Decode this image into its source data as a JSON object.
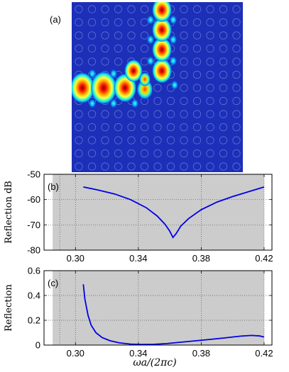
{
  "panel_labels": {
    "a": "(a)",
    "b": "(b)",
    "c": "(c)"
  },
  "field_map": {
    "colormap": "jet",
    "description": "bent waveguide field intensity in a square-lattice photonic crystal"
  },
  "x_axis": {
    "xlabel": "ωa/(2πc)",
    "ticks": [
      "0.30",
      "0.34",
      "0.38",
      "0.42"
    ]
  },
  "chart_data": [
    {
      "type": "line",
      "panel": "(b)",
      "ylabel": "Reflection dB",
      "xlim": [
        0.28,
        0.425
      ],
      "ylim": [
        -80,
        -50
      ],
      "yticks": [
        "-50",
        "-60",
        "-70",
        "-80"
      ],
      "xticks": [
        0.3,
        0.34,
        0.38,
        0.42
      ],
      "yticks_values": [
        -50,
        -60,
        -70,
        -80
      ],
      "shaded_band": [
        0.2855,
        0.42
      ],
      "grid": true,
      "series": [
        {
          "color": "#0000e6",
          "x": [
            0.305,
            0.315,
            0.325,
            0.335,
            0.345,
            0.352,
            0.357,
            0.36,
            0.362,
            0.364,
            0.367,
            0.372,
            0.38,
            0.39,
            0.4,
            0.41,
            0.42
          ],
          "y": [
            -55,
            -56.3,
            -57.8,
            -60.0,
            -63.2,
            -66.5,
            -69.8,
            -72.5,
            -75.0,
            -73.5,
            -70.5,
            -67.5,
            -64.0,
            -61.0,
            -58.8,
            -56.9,
            -55.0
          ]
        }
      ]
    },
    {
      "type": "line",
      "panel": "(c)",
      "ylabel": "Reflection",
      "xlim": [
        0.28,
        0.425
      ],
      "ylim": [
        0,
        0.6
      ],
      "yticks": [
        "0.6",
        "0.4",
        "0.2",
        "0"
      ],
      "xticks": [
        0.3,
        0.34,
        0.38,
        0.42
      ],
      "yticks_values": [
        0.6,
        0.4,
        0.2,
        0
      ],
      "shaded_band": [
        0.2855,
        0.42
      ],
      "grid": true,
      "series": [
        {
          "color": "#0000e6",
          "x": [
            0.305,
            0.306,
            0.308,
            0.31,
            0.313,
            0.317,
            0.322,
            0.328,
            0.335,
            0.342,
            0.35,
            0.358,
            0.366,
            0.375,
            0.385,
            0.395,
            0.405,
            0.412,
            0.417,
            0.42
          ],
          "y": [
            0.49,
            0.37,
            0.24,
            0.16,
            0.1,
            0.06,
            0.035,
            0.018,
            0.008,
            0.005,
            0.006,
            0.012,
            0.022,
            0.033,
            0.045,
            0.058,
            0.072,
            0.078,
            0.074,
            0.065
          ]
        }
      ]
    }
  ]
}
